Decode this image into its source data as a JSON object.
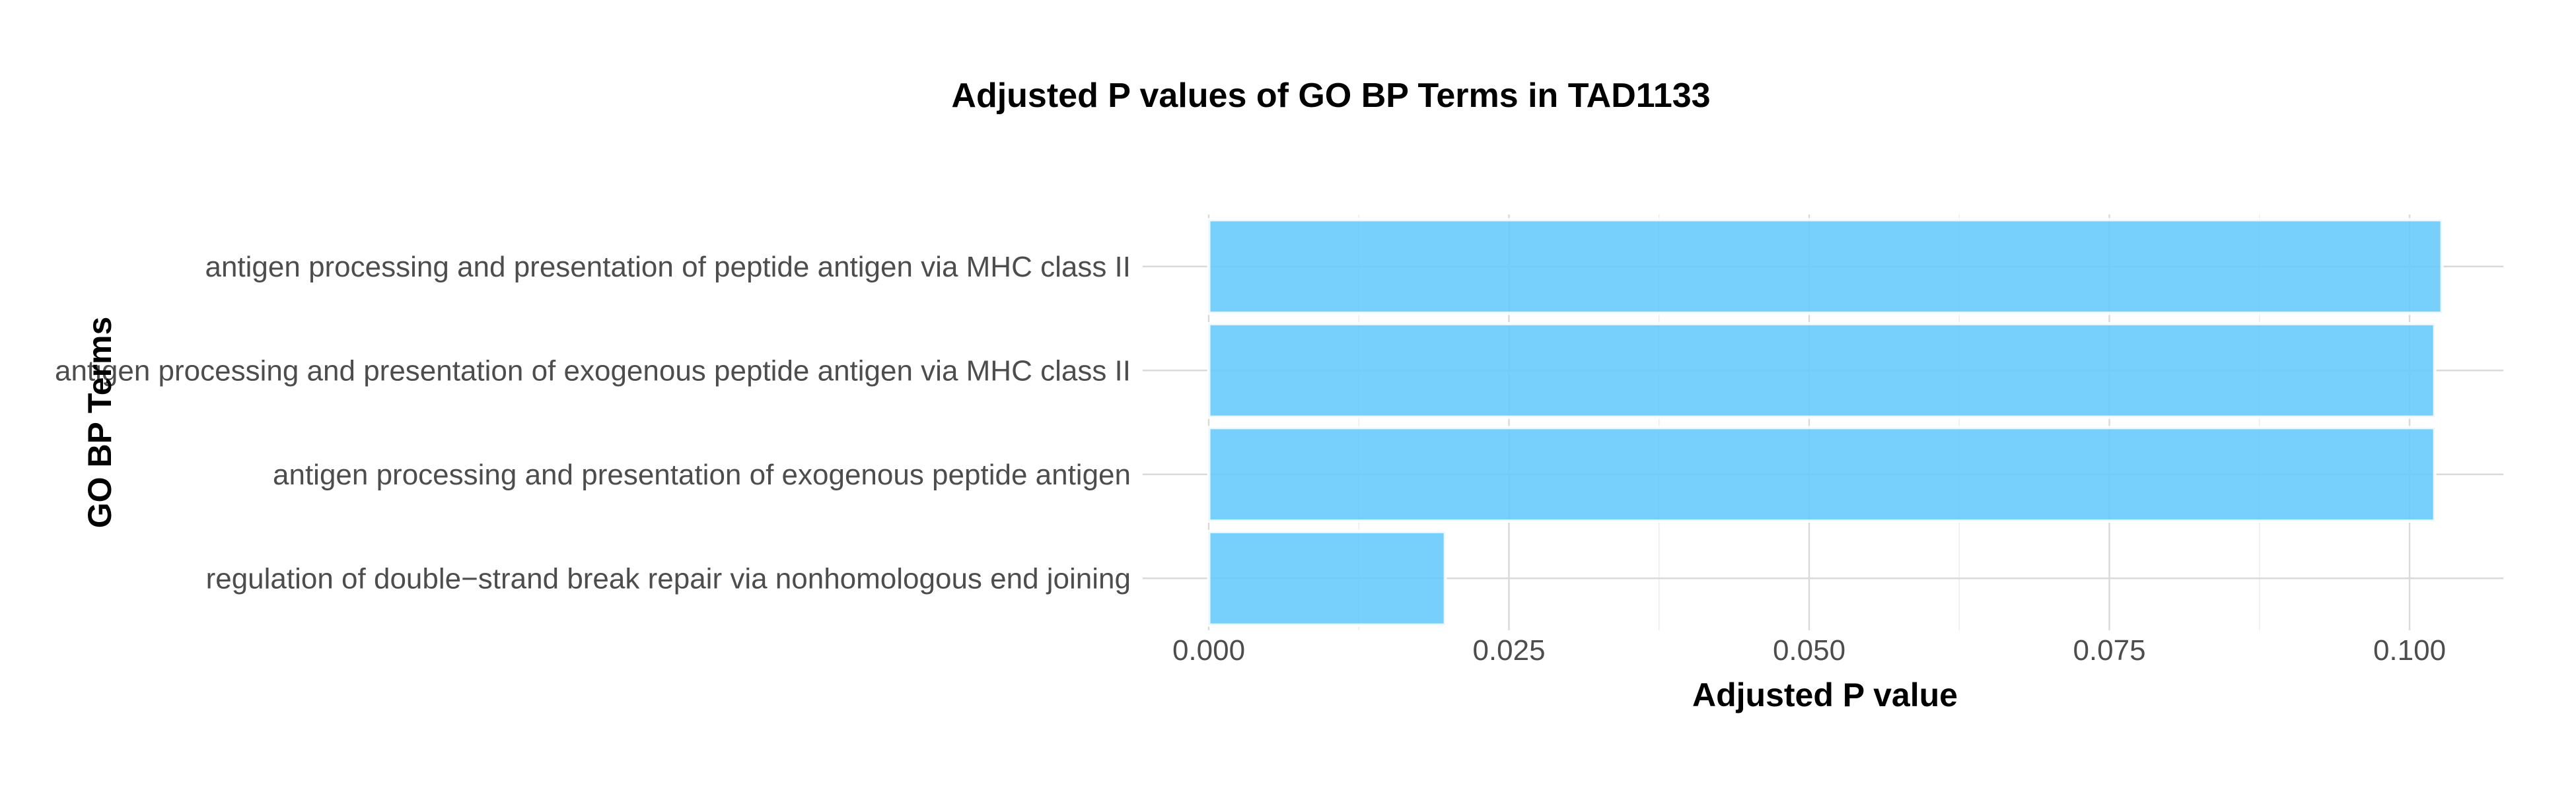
{
  "chart_data": {
    "type": "bar",
    "orientation": "horizontal",
    "title": "Adjusted P values of GO BP Terms in TAD1133",
    "xlabel": "Adjusted P value",
    "ylabel": "GO BP Terms",
    "categories": [
      "antigen processing and presentation of peptide antigen via MHC class II",
      "antigen processing and presentation of exogenous peptide antigen via MHC class II",
      "antigen processing and presentation of exogenous peptide antigen",
      "regulation of double−strand break repair via nonhomologous end joining"
    ],
    "values": [
      0.1027,
      0.1021,
      0.1021,
      0.0197
    ],
    "xlim": [
      0,
      0.108
    ],
    "xticks": [
      0.0,
      0.025,
      0.05,
      0.075,
      0.1
    ],
    "xtick_labels": [
      "0.000",
      "0.025",
      "0.050",
      "0.075",
      "0.100"
    ],
    "bar_color": "#64C8FA",
    "grid": true,
    "legend": "none"
  }
}
